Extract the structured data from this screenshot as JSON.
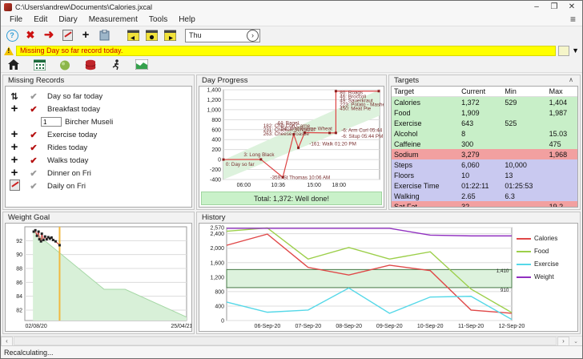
{
  "window": {
    "title": "C:\\Users\\andrew\\Documents\\Calories.jxcal",
    "minimize": "–",
    "maximize": "❐",
    "close": "✕"
  },
  "menu": {
    "items": [
      "File",
      "Edit",
      "Diary",
      "Measurement",
      "Tools",
      "Help"
    ]
  },
  "icons": {
    "help": "?",
    "delete": "✖",
    "go": "➜",
    "add": "+",
    "hamburger": "≡",
    "dropdown": "▼",
    "combo_arrow": "›",
    "scroll_up": "∧",
    "scroll_left": "‹",
    "scroll_right": "›",
    "grip": "⌄",
    "check": "✔",
    "update": "⇅"
  },
  "toolbar": {
    "day_value": "Thu"
  },
  "warning": {
    "text": "Missing Day so far record today."
  },
  "missing_records": {
    "title": "Missing Records",
    "rows": [
      {
        "icon": "update",
        "check": "gray",
        "label": "Day so far today"
      },
      {
        "icon": "add",
        "check": "red",
        "label": "Breakfast today"
      },
      {
        "icon": "none",
        "input": "1",
        "label": "Bircher Museli"
      },
      {
        "icon": "add",
        "check": "red",
        "label": "Exercise today"
      },
      {
        "icon": "add",
        "check": "red",
        "label": "Rides today"
      },
      {
        "icon": "add",
        "check": "red",
        "label": "Walks today"
      },
      {
        "icon": "add",
        "check": "gray",
        "label": "Dinner on Fri"
      },
      {
        "icon": "edit",
        "check": "gray",
        "label": "Daily on Fri"
      }
    ]
  },
  "day_progress": {
    "title": "Day Progress",
    "total": "Total: 1,372: Well done!"
  },
  "targets": {
    "title": "Targets",
    "headers": [
      "Target",
      "Current",
      "Min",
      "Max"
    ],
    "status_colors": {
      "good": "#c8efc8",
      "over": "#f2a0a0",
      "pending": "#c9c9f0"
    },
    "rows": [
      {
        "name": "Calories",
        "current": "1,372",
        "min": "529",
        "max": "1,404",
        "status": "good"
      },
      {
        "name": "Food",
        "current": "1,909",
        "min": "",
        "max": "1,987",
        "status": "good"
      },
      {
        "name": "Exercise",
        "current": "643",
        "min": "525",
        "max": "",
        "status": "good"
      },
      {
        "name": "Alcohol",
        "current": "8",
        "min": "",
        "max": "15.03",
        "status": "good"
      },
      {
        "name": "Caffeine",
        "current": "300",
        "min": "",
        "max": "475",
        "status": "good"
      },
      {
        "name": "Sodium",
        "current": "3,279",
        "min": "",
        "max": "1,968",
        "status": "over"
      },
      {
        "name": "Steps",
        "current": "6,060",
        "min": "10,000",
        "max": "",
        "status": "pending"
      },
      {
        "name": "Floors",
        "current": "10",
        "min": "13",
        "max": "",
        "status": "pending"
      },
      {
        "name": "Exercise Time",
        "current": "01:22:11",
        "min": "01:25:53",
        "max": "",
        "status": "pending"
      },
      {
        "name": "Walking",
        "current": "2.65",
        "min": "6.3",
        "max": "",
        "status": "pending"
      },
      {
        "name": "Sat Fat",
        "current": "32",
        "min": "",
        "max": "19.2",
        "status": "over"
      }
    ]
  },
  "weight_goal": {
    "title": "Weight Goal"
  },
  "history": {
    "title": "History"
  },
  "status": {
    "text": "Recalculating..."
  },
  "chart_data": [
    {
      "name": "day-progress",
      "mount": "chart-day",
      "type": "line",
      "title": "Day Progress",
      "ylim": [
        -400,
        1400
      ],
      "margins": {
        "l": 30,
        "r": 5,
        "t": 4,
        "b": 13
      },
      "yticks": [
        {
          "v": 1400,
          "label": "1,400"
        },
        {
          "v": 1200,
          "label": "1,200"
        },
        {
          "v": 1000,
          "label": "1,000"
        },
        {
          "v": 800,
          "label": "800"
        },
        {
          "v": 600,
          "label": "600"
        },
        {
          "v": 400,
          "label": "400"
        },
        {
          "v": 200,
          "label": "200"
        },
        {
          "v": 0,
          "label": "0"
        },
        {
          "v": -200,
          "label": "-200"
        },
        {
          "v": -400,
          "label": "-400"
        }
      ],
      "xticks": [
        {
          "x": 0.13,
          "label": "06:00"
        },
        {
          "x": 0.35,
          "label": "10:36"
        },
        {
          "x": 0.58,
          "label": "15:00"
        },
        {
          "x": 0.74,
          "label": "18:00"
        }
      ],
      "polys": [
        {
          "points": [
            [
              0,
              -400
            ],
            [
              1,
              880
            ],
            [
              1,
              1400
            ],
            [
              0,
              -10
            ]
          ],
          "fill": "#ddf2dd"
        }
      ],
      "series": [
        {
          "name": "Net calories so far",
          "color": "#dd4444",
          "width": 1.2,
          "marker": true,
          "marker_color": "#8c1f1f",
          "points": [
            [
              0,
              0
            ],
            [
              0.24,
              3
            ],
            [
              0.38,
              -356
            ],
            [
              0.45,
              507
            ],
            [
              0.48,
              236
            ],
            [
              0.52,
              540
            ],
            [
              0.68,
              534
            ],
            [
              0.72,
              534
            ],
            [
              0.72,
              1372
            ],
            [
              0.995,
              1372
            ]
          ]
        }
      ],
      "annotations": [
        {
          "x": 0.015,
          "v": -130,
          "text": "0: Day so far"
        },
        {
          "x": 0.13,
          "v": 70,
          "text": "3: Long Black"
        },
        {
          "x": 0.3,
          "v": -392,
          "text": "-359: St Thomas 10:06 AM"
        },
        {
          "x": 0.255,
          "v": 648,
          "text": "182: Chili Con Carne"
        },
        {
          "x": 0.255,
          "v": 565,
          "text": "231: Chicken Schnitzel"
        },
        {
          "x": 0.255,
          "v": 482,
          "text": "263: Cheese Toastie"
        },
        {
          "x": 0.345,
          "v": 700,
          "text": "44: Bagel"
        },
        {
          "x": 0.37,
          "v": 590,
          "text": "54: Wholesome Wheat"
        },
        {
          "x": 0.55,
          "v": 285,
          "text": "-161: Walk 01:20 PM"
        },
        {
          "x": 0.755,
          "v": 560,
          "text": "-6: Arm Curl 05:44 PM"
        },
        {
          "x": 0.755,
          "v": 432,
          "text": "-6: Situp 05:44 PM"
        },
        {
          "x": 0.745,
          "v": 1312,
          "text": "80: Roags"
        },
        {
          "x": 0.745,
          "v": 1232,
          "text": "46: Broccoli"
        },
        {
          "x": 0.745,
          "v": 1152,
          "text": "49: Sauerkraut"
        },
        {
          "x": 0.745,
          "v": 1072,
          "text": "223: Potato - Mashed"
        },
        {
          "x": 0.745,
          "v": 992,
          "text": "450: Meat Pie"
        }
      ]
    },
    {
      "name": "weight-goal",
      "mount": "chart-weight",
      "type": "line",
      "title": "Weight Goal",
      "ylim": [
        80.5,
        94
      ],
      "margins": {
        "l": 24,
        "r": 6,
        "t": 4,
        "b": 13
      },
      "yticks": [
        {
          "v": 92,
          "label": "92"
        },
        {
          "v": 90,
          "label": "90"
        },
        {
          "v": 88,
          "label": "88"
        },
        {
          "v": 86,
          "label": "86"
        },
        {
          "v": 84,
          "label": "84"
        },
        {
          "v": 82,
          "label": "82"
        }
      ],
      "xticks": [
        {
          "x": 0.07,
          "label": "02/08/20"
        },
        {
          "x": 0.97,
          "label": "25/04/21"
        }
      ],
      "areas": [
        {
          "name": "goal path",
          "fill": "#d8f0d8",
          "line": "#a5d8a5",
          "points": [
            [
              0.05,
              93.4
            ],
            [
              0.49,
              85
            ],
            [
              0.62,
              85
            ],
            [
              1,
              81
            ]
          ]
        }
      ],
      "vlines": [
        {
          "x": 0.215,
          "color": "#f0b840",
          "w": 2
        }
      ],
      "series": [
        {
          "name": "actual weight",
          "color": "#cc3333",
          "width": 1,
          "marker": true,
          "marker_color": "#222",
          "points": [
            [
              0.055,
              93.3
            ],
            [
              0.065,
              93.5
            ],
            [
              0.075,
              92.7
            ],
            [
              0.085,
              93.3
            ],
            [
              0.09,
              92.2
            ],
            [
              0.1,
              91.9
            ],
            [
              0.105,
              93.0
            ],
            [
              0.115,
              92.1
            ],
            [
              0.125,
              92.6
            ],
            [
              0.135,
              92.2
            ],
            [
              0.145,
              92.5
            ],
            [
              0.155,
              92.3
            ],
            [
              0.165,
              92.45
            ],
            [
              0.175,
              92.1
            ],
            [
              0.19,
              91.9
            ],
            [
              0.215,
              91.35
            ]
          ]
        }
      ],
      "annotations": []
    },
    {
      "name": "history",
      "mount": "chart-history",
      "type": "line",
      "title": "History",
      "ylim": [
        0,
        2570
      ],
      "margins": {
        "l": 34,
        "r": 6,
        "t": 5,
        "b": 13
      },
      "yticks": [
        {
          "v": 2570,
          "label": "2,570"
        },
        {
          "v": 2400,
          "label": "2,400"
        },
        {
          "v": 2000,
          "label": "2,000"
        },
        {
          "v": 1600,
          "label": "1,600"
        },
        {
          "v": 1200,
          "label": "1,200"
        },
        {
          "v": 800,
          "label": "800"
        },
        {
          "v": 400,
          "label": "400"
        },
        {
          "v": 0,
          "label": "0"
        }
      ],
      "xticks": [
        {
          "x": 0.143,
          "label": "06-Sep-20"
        },
        {
          "x": 0.286,
          "label": "07-Sep-20"
        },
        {
          "x": 0.429,
          "label": "08-Sep-20"
        },
        {
          "x": 0.571,
          "label": "09-Sep-20"
        },
        {
          "x": 0.714,
          "label": "10-Sep-20"
        },
        {
          "x": 0.857,
          "label": "11-Sep-20"
        },
        {
          "x": 1,
          "label": "12-Sep-20"
        }
      ],
      "bands": [
        {
          "from": 910,
          "to": 1410,
          "fill": "#ddf2dd",
          "stroke": "#447744"
        }
      ],
      "series": [
        {
          "name": "Calories",
          "color": "#e04848",
          "width": 1.4,
          "values": [
            2080,
            2390,
            1470,
            1260,
            1530,
            1380,
            290,
            200
          ]
        },
        {
          "name": "Food",
          "color": "#9ccf4a",
          "width": 1.4,
          "values": [
            2470,
            2560,
            1700,
            2020,
            1700,
            1900,
            870,
            220
          ]
        },
        {
          "name": "Exercise",
          "color": "#55d8e8",
          "width": 1.4,
          "values": [
            510,
            230,
            290,
            900,
            200,
            650,
            670,
            30
          ]
        },
        {
          "name": "Weight",
          "color": "#9030c0",
          "width": 1.4,
          "values": [
            2550,
            2550,
            2550,
            2550,
            2550,
            2360,
            2340,
            2340
          ]
        }
      ],
      "annotations": [
        {
          "x": 0.99,
          "v": 1330,
          "text": "1,410",
          "anchor": "end",
          "color": "#222"
        },
        {
          "x": 0.99,
          "v": 800,
          "text": "910",
          "anchor": "end",
          "color": "#222"
        }
      ]
    }
  ]
}
